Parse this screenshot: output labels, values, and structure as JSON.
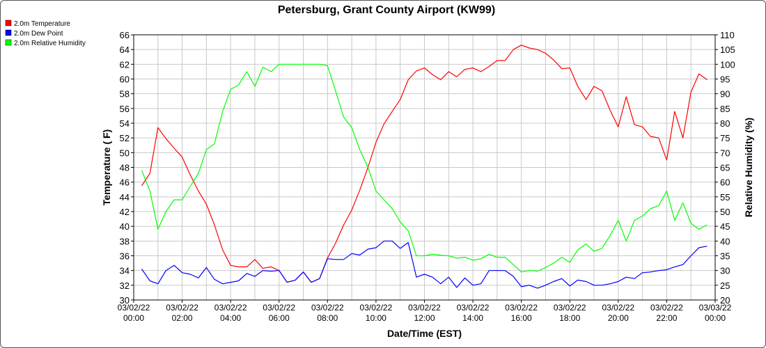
{
  "chart_data": {
    "type": "line",
    "title": "Petersburg, Grant County Airport (KW99)",
    "xlabel": "Date/Time (EST)",
    "ylabel_left": "Temperature ( F)",
    "ylabel_right": "Relative Humidity (%)",
    "ylim_left": [
      30,
      66
    ],
    "ylim_right": [
      20,
      110
    ],
    "xlim_hours": [
      0,
      24
    ],
    "yticks_left": [
      "30",
      "32",
      "34",
      "36",
      "38",
      "40",
      "42",
      "44",
      "46",
      "48",
      "50",
      "52",
      "54",
      "56",
      "58",
      "60",
      "62",
      "64",
      "66"
    ],
    "yticks_right": [
      "20",
      "25",
      "30",
      "35",
      "40",
      "45",
      "50",
      "55",
      "60",
      "65",
      "70",
      "75",
      "80",
      "85",
      "90",
      "95",
      "100",
      "105",
      "110"
    ],
    "xticks": [
      {
        "date": "03/02/22",
        "time": "00:00"
      },
      {
        "date": "03/02/22",
        "time": "02:00"
      },
      {
        "date": "03/02/22",
        "time": "04:00"
      },
      {
        "date": "03/02/22",
        "time": "06:00"
      },
      {
        "date": "03/02/22",
        "time": "08:00"
      },
      {
        "date": "03/02/22",
        "time": "10:00"
      },
      {
        "date": "03/02/22",
        "time": "12:00"
      },
      {
        "date": "03/02/22",
        "time": "14:00"
      },
      {
        "date": "03/02/22",
        "time": "16:00"
      },
      {
        "date": "03/02/22",
        "time": "18:00"
      },
      {
        "date": "03/02/22",
        "time": "20:00"
      },
      {
        "date": "03/02/22",
        "time": "22:00"
      },
      {
        "date": "03/03/22",
        "time": "00:00"
      }
    ],
    "grid": true,
    "legend_position": "top-left",
    "series": [
      {
        "name": "2.0m Temperature",
        "color": "#ff0000",
        "axis": "left",
        "points": [
          [
            0.33,
            45.5
          ],
          [
            0.67,
            47.2
          ],
          [
            1.0,
            53.4
          ],
          [
            1.33,
            51.9
          ],
          [
            1.67,
            50.6
          ],
          [
            2.0,
            49.4
          ],
          [
            2.33,
            47.0
          ],
          [
            2.67,
            44.8
          ],
          [
            3.0,
            43.0
          ],
          [
            3.33,
            40.2
          ],
          [
            3.67,
            36.8
          ],
          [
            4.0,
            34.7
          ],
          [
            4.33,
            34.5
          ],
          [
            4.67,
            34.5
          ],
          [
            5.0,
            35.5
          ],
          [
            5.33,
            34.3
          ],
          [
            5.67,
            34.5
          ],
          [
            6.0,
            34.0
          ],
          [
            6.33,
            32.4
          ],
          [
            6.67,
            32.7
          ],
          [
            7.0,
            33.8
          ],
          [
            7.33,
            32.4
          ],
          [
            7.67,
            32.9
          ],
          [
            8.0,
            35.7
          ],
          [
            8.33,
            37.7
          ],
          [
            8.67,
            40.2
          ],
          [
            9.0,
            42.2
          ],
          [
            9.33,
            44.9
          ],
          [
            9.67,
            48.0
          ],
          [
            10.0,
            51.4
          ],
          [
            10.33,
            53.9
          ],
          [
            10.67,
            55.6
          ],
          [
            11.0,
            57.2
          ],
          [
            11.33,
            59.9
          ],
          [
            11.67,
            61.1
          ],
          [
            12.0,
            61.5
          ],
          [
            12.33,
            60.6
          ],
          [
            12.67,
            59.9
          ],
          [
            13.0,
            61.0
          ],
          [
            13.33,
            60.3
          ],
          [
            13.67,
            61.3
          ],
          [
            14.0,
            61.5
          ],
          [
            14.33,
            61.0
          ],
          [
            14.67,
            61.7
          ],
          [
            15.0,
            62.5
          ],
          [
            15.33,
            62.5
          ],
          [
            15.67,
            64.0
          ],
          [
            16.0,
            64.6
          ],
          [
            16.33,
            64.2
          ],
          [
            16.67,
            64.0
          ],
          [
            17.0,
            63.5
          ],
          [
            17.33,
            62.6
          ],
          [
            17.67,
            61.4
          ],
          [
            18.0,
            61.5
          ],
          [
            18.33,
            59.0
          ],
          [
            18.67,
            57.2
          ],
          [
            19.0,
            59.0
          ],
          [
            19.33,
            58.4
          ],
          [
            19.67,
            55.7
          ],
          [
            20.0,
            53.5
          ],
          [
            20.33,
            57.6
          ],
          [
            20.67,
            53.8
          ],
          [
            21.0,
            53.5
          ],
          [
            21.33,
            52.2
          ],
          [
            21.67,
            52.0
          ],
          [
            22.0,
            49.0
          ],
          [
            22.33,
            55.6
          ],
          [
            22.67,
            52.0
          ],
          [
            23.0,
            58.2
          ],
          [
            23.33,
            60.7
          ],
          [
            23.67,
            59.9
          ]
        ]
      },
      {
        "name": "2.0m Dew Point",
        "color": "#0000ff",
        "axis": "left",
        "points": [
          [
            0.33,
            34.2
          ],
          [
            0.67,
            32.6
          ],
          [
            1.0,
            32.2
          ],
          [
            1.33,
            34.0
          ],
          [
            1.67,
            34.7
          ],
          [
            2.0,
            33.7
          ],
          [
            2.33,
            33.5
          ],
          [
            2.67,
            33.0
          ],
          [
            3.0,
            34.4
          ],
          [
            3.33,
            32.8
          ],
          [
            3.67,
            32.2
          ],
          [
            4.0,
            32.4
          ],
          [
            4.33,
            32.6
          ],
          [
            4.67,
            33.6
          ],
          [
            5.0,
            33.2
          ],
          [
            5.33,
            34.0
          ],
          [
            5.67,
            33.9
          ],
          [
            6.0,
            34.0
          ],
          [
            6.33,
            32.4
          ],
          [
            6.67,
            32.7
          ],
          [
            7.0,
            33.8
          ],
          [
            7.33,
            32.4
          ],
          [
            7.67,
            32.9
          ],
          [
            8.0,
            35.6
          ],
          [
            8.33,
            35.5
          ],
          [
            8.67,
            35.5
          ],
          [
            9.0,
            36.3
          ],
          [
            9.33,
            36.1
          ],
          [
            9.67,
            36.9
          ],
          [
            10.0,
            37.1
          ],
          [
            10.33,
            38.0
          ],
          [
            10.67,
            38.0
          ],
          [
            11.0,
            37.0
          ],
          [
            11.33,
            37.8
          ],
          [
            11.67,
            33.1
          ],
          [
            12.0,
            33.5
          ],
          [
            12.33,
            33.1
          ],
          [
            12.67,
            32.2
          ],
          [
            13.0,
            33.1
          ],
          [
            13.33,
            31.7
          ],
          [
            13.67,
            33.0
          ],
          [
            14.0,
            32.0
          ],
          [
            14.33,
            32.2
          ],
          [
            14.67,
            34.0
          ],
          [
            15.0,
            34.0
          ],
          [
            15.33,
            34.0
          ],
          [
            15.67,
            33.2
          ],
          [
            16.0,
            31.8
          ],
          [
            16.33,
            32.0
          ],
          [
            16.67,
            31.6
          ],
          [
            17.0,
            32.0
          ],
          [
            17.33,
            32.5
          ],
          [
            17.67,
            32.9
          ],
          [
            18.0,
            31.9
          ],
          [
            18.33,
            32.7
          ],
          [
            18.67,
            32.5
          ],
          [
            19.0,
            32.0
          ],
          [
            19.33,
            32.0
          ],
          [
            19.67,
            32.2
          ],
          [
            20.0,
            32.5
          ],
          [
            20.33,
            33.1
          ],
          [
            20.67,
            32.9
          ],
          [
            21.0,
            33.7
          ],
          [
            21.33,
            33.8
          ],
          [
            21.67,
            34.0
          ],
          [
            22.0,
            34.1
          ],
          [
            22.33,
            34.5
          ],
          [
            22.67,
            34.8
          ],
          [
            23.0,
            36.0
          ],
          [
            23.33,
            37.1
          ],
          [
            23.67,
            37.3
          ]
        ]
      },
      {
        "name": "2.0m Relative Humidity",
        "color": "#00ff00",
        "axis": "right",
        "points": [
          [
            0.33,
            64.0
          ],
          [
            0.67,
            57.0
          ],
          [
            1.0,
            44.0
          ],
          [
            1.33,
            50.0
          ],
          [
            1.67,
            54.0
          ],
          [
            2.0,
            54.0
          ],
          [
            2.33,
            58.5
          ],
          [
            2.67,
            63.0
          ],
          [
            3.0,
            71.0
          ],
          [
            3.33,
            73.0
          ],
          [
            3.67,
            84.0
          ],
          [
            4.0,
            91.5
          ],
          [
            4.33,
            93.0
          ],
          [
            4.67,
            97.5
          ],
          [
            5.0,
            92.5
          ],
          [
            5.33,
            99.0
          ],
          [
            5.67,
            97.5
          ],
          [
            6.0,
            100.0
          ],
          [
            6.33,
            100.0
          ],
          [
            6.67,
            100.0
          ],
          [
            7.0,
            100.0
          ],
          [
            7.33,
            100.0
          ],
          [
            7.67,
            100.0
          ],
          [
            8.0,
            99.5
          ],
          [
            8.33,
            91.0
          ],
          [
            8.67,
            82.0
          ],
          [
            9.0,
            78.5
          ],
          [
            9.33,
            71.0
          ],
          [
            9.67,
            65.0
          ],
          [
            10.0,
            57.0
          ],
          [
            10.33,
            54.0
          ],
          [
            10.67,
            51.0
          ],
          [
            11.0,
            46.5
          ],
          [
            11.33,
            43.5
          ],
          [
            11.67,
            35.0
          ],
          [
            12.0,
            35.0
          ],
          [
            12.33,
            35.5
          ],
          [
            12.67,
            35.2
          ],
          [
            13.0,
            35.0
          ],
          [
            13.33,
            34.2
          ],
          [
            13.67,
            34.5
          ],
          [
            14.0,
            33.5
          ],
          [
            14.33,
            34.0
          ],
          [
            14.67,
            35.5
          ],
          [
            15.0,
            34.5
          ],
          [
            15.33,
            34.5
          ],
          [
            15.67,
            32.0
          ],
          [
            16.0,
            29.5
          ],
          [
            16.33,
            30.0
          ],
          [
            16.67,
            29.8
          ],
          [
            17.0,
            31.0
          ],
          [
            17.33,
            32.5
          ],
          [
            17.67,
            34.5
          ],
          [
            18.0,
            32.8
          ],
          [
            18.33,
            37.0
          ],
          [
            18.67,
            39.0
          ],
          [
            19.0,
            36.5
          ],
          [
            19.33,
            37.5
          ],
          [
            19.67,
            42.0
          ],
          [
            20.0,
            47.0
          ],
          [
            20.33,
            40.0
          ],
          [
            20.67,
            47.0
          ],
          [
            21.0,
            48.5
          ],
          [
            21.33,
            51.0
          ],
          [
            21.67,
            52.0
          ],
          [
            22.0,
            57.0
          ],
          [
            22.33,
            47.0
          ],
          [
            22.67,
            53.0
          ],
          [
            23.0,
            46.0
          ],
          [
            23.33,
            44.0
          ],
          [
            23.67,
            45.5
          ]
        ]
      }
    ]
  }
}
